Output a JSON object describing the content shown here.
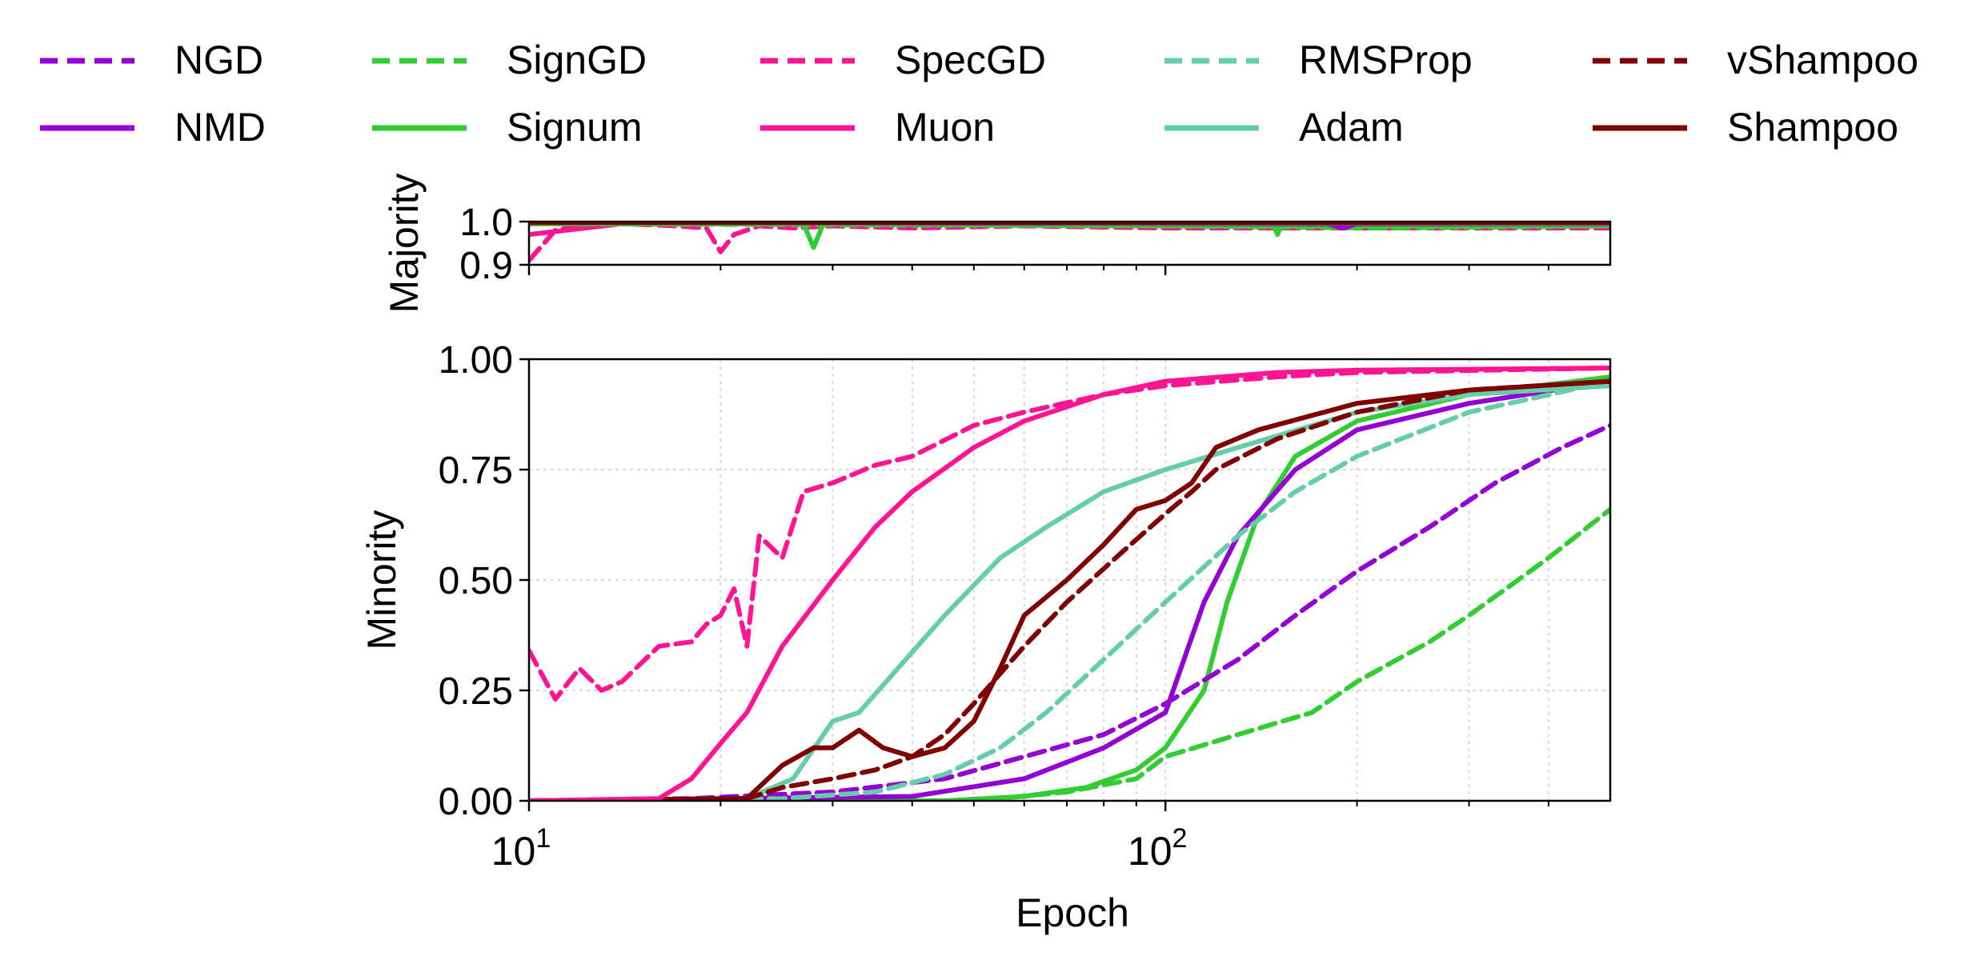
{
  "chart_data": {
    "type": "line",
    "xscale": "log",
    "xlim": [
      10,
      500
    ],
    "xlabel": "Epoch",
    "xticks": [
      {
        "value": 10,
        "base": "10",
        "exp": "1"
      },
      {
        "value": 100,
        "base": "10",
        "exp": "2"
      }
    ],
    "legend": {
      "placement": "top",
      "entries": [
        {
          "name": "NGD",
          "color": "#9400D3",
          "style": "dashed"
        },
        {
          "name": "SignGD",
          "color": "#32CD32",
          "style": "dashed"
        },
        {
          "name": "SpecGD",
          "color": "#FF1493",
          "style": "dashed"
        },
        {
          "name": "RMSProp",
          "color": "#66CDAA",
          "style": "dashed"
        },
        {
          "name": "vShampoo",
          "color": "#800000",
          "style": "dashed"
        },
        {
          "name": "NMD",
          "color": "#9400D3",
          "style": "solid"
        },
        {
          "name": "Signum",
          "color": "#32CD32",
          "style": "solid"
        },
        {
          "name": "Muon",
          "color": "#FF1493",
          "style": "solid"
        },
        {
          "name": "Adam",
          "color": "#66CDAA",
          "style": "solid"
        },
        {
          "name": "Shampoo",
          "color": "#800000",
          "style": "solid"
        }
      ]
    },
    "panels": [
      {
        "id": "majority",
        "ylabel": "Majority",
        "ylim": [
          0.9,
          1.0
        ],
        "yticks": [
          {
            "value": 0.9,
            "label": "0.9"
          },
          {
            "value": 1.0,
            "label": "1.0"
          }
        ],
        "grid": false,
        "series": [
          {
            "name": "SpecGD",
            "color": "#FF1493",
            "style": "dashed",
            "points": [
              [
                10,
                0.91
              ],
              [
                11,
                0.98
              ],
              [
                12,
                0.99
              ],
              [
                14,
                0.995
              ],
              [
                17,
                0.99
              ],
              [
                19,
                0.985
              ],
              [
                20,
                0.93
              ],
              [
                21,
                0.97
              ],
              [
                23,
                0.99
              ],
              [
                26,
                0.985
              ],
              [
                30,
                0.99
              ],
              [
                40,
                0.985
              ],
              [
                60,
                0.99
              ],
              [
                100,
                0.985
              ],
              [
                200,
                0.985
              ],
              [
                500,
                0.985
              ]
            ]
          },
          {
            "name": "Muon",
            "color": "#FF1493",
            "style": "solid",
            "points": [
              [
                10,
                0.97
              ],
              [
                14,
                0.995
              ],
              [
                20,
                0.995
              ],
              [
                50,
                0.995
              ],
              [
                500,
                0.993
              ]
            ]
          },
          {
            "name": "Signum",
            "color": "#32CD32",
            "style": "solid",
            "points": [
              [
                10,
                0.995
              ],
              [
                27,
                0.995
              ],
              [
                28,
                0.94
              ],
              [
                29,
                0.995
              ],
              [
                100,
                0.99
              ],
              [
                148,
                0.99
              ],
              [
                150,
                0.97
              ],
              [
                152,
                0.99
              ],
              [
                500,
                0.99
              ]
            ]
          },
          {
            "name": "SignGD",
            "color": "#32CD32",
            "style": "dashed",
            "points": [
              [
                10,
                0.995
              ],
              [
                100,
                0.99
              ],
              [
                220,
                0.985
              ],
              [
                500,
                0.99
              ]
            ]
          },
          {
            "name": "NMD",
            "color": "#9400D3",
            "style": "solid",
            "points": [
              [
                10,
                0.998
              ],
              [
                180,
                0.995
              ],
              [
                190,
                0.985
              ],
              [
                200,
                0.995
              ],
              [
                500,
                0.995
              ]
            ]
          },
          {
            "name": "Adam",
            "color": "#66CDAA",
            "style": "solid",
            "points": [
              [
                10,
                0.998
              ],
              [
                500,
                0.996
              ]
            ]
          },
          {
            "name": "Shampoo",
            "color": "#800000",
            "style": "solid",
            "points": [
              [
                10,
                0.998
              ],
              [
                500,
                0.997
              ]
            ]
          }
        ]
      },
      {
        "id": "minority",
        "ylabel": "Minority",
        "ylim": [
          0.0,
          1.0
        ],
        "yticks": [
          {
            "value": 0.0,
            "label": "0.00"
          },
          {
            "value": 0.25,
            "label": "0.25"
          },
          {
            "value": 0.5,
            "label": "0.50"
          },
          {
            "value": 0.75,
            "label": "0.75"
          },
          {
            "value": 1.0,
            "label": "1.00"
          }
        ],
        "grid": true,
        "series": [
          {
            "name": "SignGD",
            "color": "#32CD32",
            "style": "dashed",
            "points": [
              [
                10,
                0
              ],
              [
                50,
                0
              ],
              [
                70,
                0.02
              ],
              [
                90,
                0.05
              ],
              [
                100,
                0.1
              ],
              [
                130,
                0.15
              ],
              [
                170,
                0.2
              ],
              [
                200,
                0.27
              ],
              [
                260,
                0.36
              ],
              [
                300,
                0.42
              ],
              [
                400,
                0.55
              ],
              [
                500,
                0.66
              ]
            ]
          },
          {
            "name": "Signum",
            "color": "#32CD32",
            "style": "solid",
            "points": [
              [
                10,
                0
              ],
              [
                45,
                0
              ],
              [
                60,
                0.01
              ],
              [
                75,
                0.03
              ],
              [
                90,
                0.07
              ],
              [
                100,
                0.12
              ],
              [
                115,
                0.25
              ],
              [
                125,
                0.45
              ],
              [
                140,
                0.65
              ],
              [
                160,
                0.78
              ],
              [
                200,
                0.86
              ],
              [
                300,
                0.92
              ],
              [
                500,
                0.96
              ]
            ]
          },
          {
            "name": "NGD",
            "color": "#9400D3",
            "style": "dashed",
            "points": [
              [
                10,
                0
              ],
              [
                18,
                0.005
              ],
              [
                30,
                0.02
              ],
              [
                45,
                0.05
              ],
              [
                60,
                0.1
              ],
              [
                80,
                0.15
              ],
              [
                100,
                0.22
              ],
              [
                130,
                0.32
              ],
              [
                160,
                0.42
              ],
              [
                200,
                0.52
              ],
              [
                260,
                0.62
              ],
              [
                330,
                0.72
              ],
              [
                420,
                0.8
              ],
              [
                500,
                0.85
              ]
            ]
          },
          {
            "name": "NMD",
            "color": "#9400D3",
            "style": "solid",
            "points": [
              [
                10,
                0
              ],
              [
                40,
                0.01
              ],
              [
                60,
                0.05
              ],
              [
                80,
                0.12
              ],
              [
                100,
                0.2
              ],
              [
                115,
                0.45
              ],
              [
                130,
                0.6
              ],
              [
                160,
                0.75
              ],
              [
                200,
                0.84
              ],
              [
                300,
                0.9
              ],
              [
                500,
                0.95
              ]
            ]
          },
          {
            "name": "RMSProp",
            "color": "#66CDAA",
            "style": "dashed",
            "points": [
              [
                10,
                0
              ],
              [
                25,
                0.005
              ],
              [
                35,
                0.02
              ],
              [
                45,
                0.06
              ],
              [
                55,
                0.12
              ],
              [
                65,
                0.2
              ],
              [
                80,
                0.32
              ],
              [
                100,
                0.45
              ],
              [
                130,
                0.6
              ],
              [
                160,
                0.7
              ],
              [
                200,
                0.78
              ],
              [
                300,
                0.88
              ],
              [
                500,
                0.95
              ]
            ]
          },
          {
            "name": "Adam",
            "color": "#66CDAA",
            "style": "solid",
            "points": [
              [
                10,
                0
              ],
              [
                22,
                0.005
              ],
              [
                26,
                0.05
              ],
              [
                30,
                0.18
              ],
              [
                33,
                0.2
              ],
              [
                38,
                0.3
              ],
              [
                45,
                0.42
              ],
              [
                55,
                0.55
              ],
              [
                65,
                0.62
              ],
              [
                80,
                0.7
              ],
              [
                100,
                0.75
              ],
              [
                130,
                0.8
              ],
              [
                200,
                0.88
              ],
              [
                300,
                0.92
              ],
              [
                500,
                0.94
              ]
            ]
          },
          {
            "name": "vShampoo",
            "color": "#800000",
            "style": "dashed",
            "points": [
              [
                10,
                0
              ],
              [
                22,
                0.005
              ],
              [
                25,
                0.03
              ],
              [
                30,
                0.05
              ],
              [
                35,
                0.07
              ],
              [
                40,
                0.1
              ],
              [
                45,
                0.15
              ],
              [
                50,
                0.22
              ],
              [
                60,
                0.35
              ],
              [
                70,
                0.45
              ],
              [
                85,
                0.56
              ],
              [
                100,
                0.65
              ],
              [
                110,
                0.7
              ],
              [
                120,
                0.75
              ],
              [
                150,
                0.82
              ],
              [
                200,
                0.88
              ],
              [
                300,
                0.93
              ],
              [
                500,
                0.95
              ]
            ]
          },
          {
            "name": "Shampoo",
            "color": "#800000",
            "style": "solid",
            "points": [
              [
                10,
                0
              ],
              [
                22,
                0.005
              ],
              [
                25,
                0.08
              ],
              [
                28,
                0.12
              ],
              [
                30,
                0.12
              ],
              [
                33,
                0.16
              ],
              [
                36,
                0.12
              ],
              [
                40,
                0.1
              ],
              [
                45,
                0.12
              ],
              [
                50,
                0.18
              ],
              [
                55,
                0.3
              ],
              [
                60,
                0.42
              ],
              [
                70,
                0.5
              ],
              [
                80,
                0.58
              ],
              [
                90,
                0.66
              ],
              [
                100,
                0.68
              ],
              [
                110,
                0.72
              ],
              [
                120,
                0.8
              ],
              [
                140,
                0.84
              ],
              [
                200,
                0.9
              ],
              [
                300,
                0.93
              ],
              [
                500,
                0.95
              ]
            ]
          },
          {
            "name": "SpecGD",
            "color": "#FF1493",
            "style": "dashed",
            "points": [
              [
                10,
                0.34
              ],
              [
                11,
                0.23
              ],
              [
                12,
                0.3
              ],
              [
                13,
                0.25
              ],
              [
                14,
                0.27
              ],
              [
                16,
                0.35
              ],
              [
                18,
                0.36
              ],
              [
                19,
                0.4
              ],
              [
                20,
                0.42
              ],
              [
                21,
                0.48
              ],
              [
                22,
                0.35
              ],
              [
                23,
                0.6
              ],
              [
                25,
                0.55
              ],
              [
                27,
                0.7
              ],
              [
                30,
                0.72
              ],
              [
                35,
                0.76
              ],
              [
                40,
                0.78
              ],
              [
                50,
                0.85
              ],
              [
                60,
                0.88
              ],
              [
                80,
                0.92
              ],
              [
                100,
                0.94
              ],
              [
                150,
                0.96
              ],
              [
                200,
                0.97
              ],
              [
                500,
                0.98
              ]
            ]
          },
          {
            "name": "Muon",
            "color": "#FF1493",
            "style": "solid",
            "points": [
              [
                10,
                0
              ],
              [
                16,
                0.005
              ],
              [
                18,
                0.05
              ],
              [
                20,
                0.13
              ],
              [
                22,
                0.2
              ],
              [
                25,
                0.35
              ],
              [
                30,
                0.5
              ],
              [
                35,
                0.62
              ],
              [
                40,
                0.7
              ],
              [
                50,
                0.8
              ],
              [
                60,
                0.86
              ],
              [
                80,
                0.92
              ],
              [
                100,
                0.95
              ],
              [
                150,
                0.97
              ],
              [
                200,
                0.975
              ],
              [
                500,
                0.98
              ]
            ]
          }
        ]
      }
    ]
  }
}
